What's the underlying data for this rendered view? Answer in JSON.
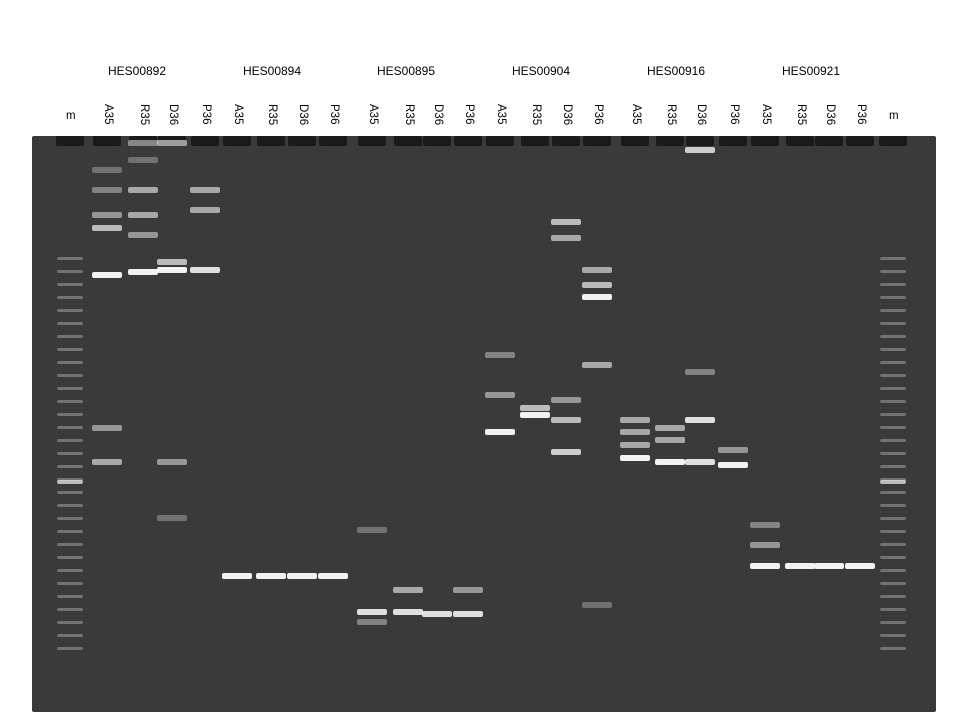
{
  "groups": [
    {
      "label": "HES00892"
    },
    {
      "label": "HES00894"
    },
    {
      "label": "HES00895"
    },
    {
      "label": "HES00904"
    },
    {
      "label": "HES00916"
    },
    {
      "label": "HES00921"
    }
  ],
  "lanes": [
    "m",
    "A35",
    "R35",
    "D36",
    "P36",
    "A35",
    "R35",
    "D36",
    "P36",
    "A35",
    "R35",
    "D36",
    "P36",
    "A35",
    "R35",
    "D36",
    "P36",
    "A35",
    "R35",
    "D36",
    "P36",
    "A35",
    "R35",
    "D36",
    "P36",
    "m"
  ],
  "colors": {
    "gel": "#3a3a3a",
    "band": "#f2f2f2"
  }
}
